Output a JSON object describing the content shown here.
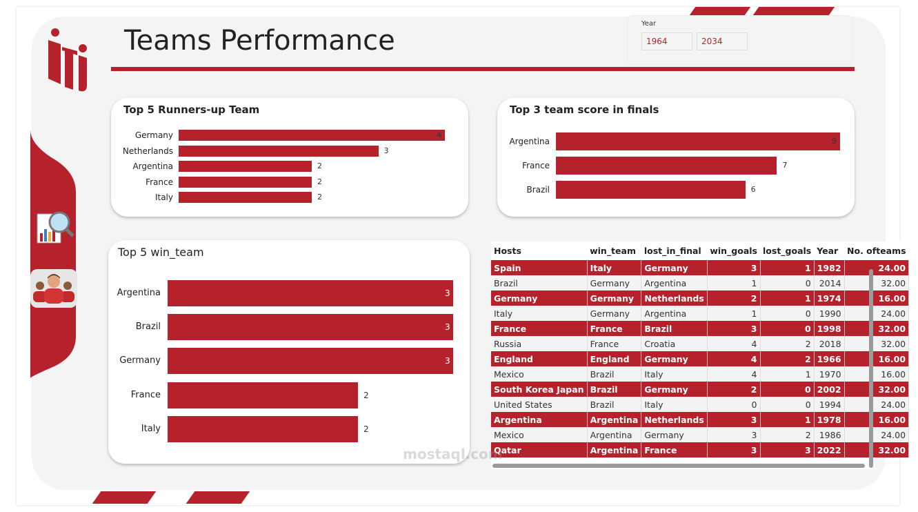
{
  "header": {
    "title": "Teams Performance"
  },
  "slicer": {
    "label": "Year",
    "from": "1964",
    "to": "2034"
  },
  "colors": {
    "accent": "#b5222b",
    "background": "#f4f4f4"
  },
  "sidebar": {
    "icons": [
      "report-search-icon",
      "team-players-icon"
    ]
  },
  "chart_data": [
    {
      "type": "bar",
      "title": "Top 5 Runners-up Team",
      "categories": [
        "Germany",
        "Netherlands",
        "Argentina",
        "France",
        "Italy"
      ],
      "values": [
        4,
        3,
        2,
        2,
        2
      ],
      "labels": [
        "4",
        "3",
        "2",
        "2",
        "2"
      ],
      "orientation": "horizontal",
      "xlim": [
        0,
        4
      ]
    },
    {
      "type": "bar",
      "title": "Top 3 team score in finals",
      "categories": [
        "Argentina",
        "France",
        "Brazil"
      ],
      "values": [
        9,
        7,
        6
      ],
      "labels": [
        "9",
        "7",
        "6"
      ],
      "orientation": "horizontal",
      "xlim": [
        0,
        9
      ]
    },
    {
      "type": "bar",
      "title": "Top 5 win_team",
      "categories": [
        "Argentina",
        "Brazil",
        "Germany",
        "France",
        "Italy"
      ],
      "values": [
        3,
        3,
        3,
        2,
        2
      ],
      "labels": [
        "3",
        "3",
        "3",
        "2",
        "2"
      ],
      "orientation": "horizontal",
      "xlim": [
        0,
        3
      ]
    }
  ],
  "table": {
    "columns": [
      "Hosts",
      "win_team",
      "lost_in_final",
      "win_goals",
      "lost_goals",
      "Year",
      "No. ofteams"
    ],
    "rows": [
      [
        "Spain",
        "Italy",
        "Germany",
        "3",
        "1",
        "1982",
        "24.00"
      ],
      [
        "Brazil",
        "Germany",
        "Argentina",
        "1",
        "0",
        "2014",
        "32.00"
      ],
      [
        "Germany",
        "Germany",
        "Netherlands",
        "2",
        "1",
        "1974",
        "16.00"
      ],
      [
        "Italy",
        "Germany",
        "Argentina",
        "1",
        "0",
        "1990",
        "24.00"
      ],
      [
        "France",
        "France",
        "Brazil",
        "3",
        "0",
        "1998",
        "32.00"
      ],
      [
        "Russia",
        "France",
        "Croatia",
        "4",
        "2",
        "2018",
        "32.00"
      ],
      [
        "England",
        "England",
        "Germany",
        "4",
        "2",
        "1966",
        "16.00"
      ],
      [
        "Mexico",
        "Brazil",
        "Italy",
        "4",
        "1",
        "1970",
        "16.00"
      ],
      [
        "South Korea Japan",
        "Brazil",
        "Germany",
        "2",
        "0",
        "2002",
        "32.00"
      ],
      [
        "United States",
        "Brazil",
        "Italy",
        "0",
        "0",
        "1994",
        "24.00"
      ],
      [
        "Argentina",
        "Argentina",
        "Netherlands",
        "3",
        "1",
        "1978",
        "16.00"
      ],
      [
        "Mexico",
        "Argentina",
        "Germany",
        "3",
        "2",
        "1986",
        "24.00"
      ],
      [
        "Qatar",
        "Argentina",
        "France",
        "3",
        "3",
        "2022",
        "32.00"
      ]
    ]
  },
  "watermark": {
    "text": "mostaql.com"
  }
}
